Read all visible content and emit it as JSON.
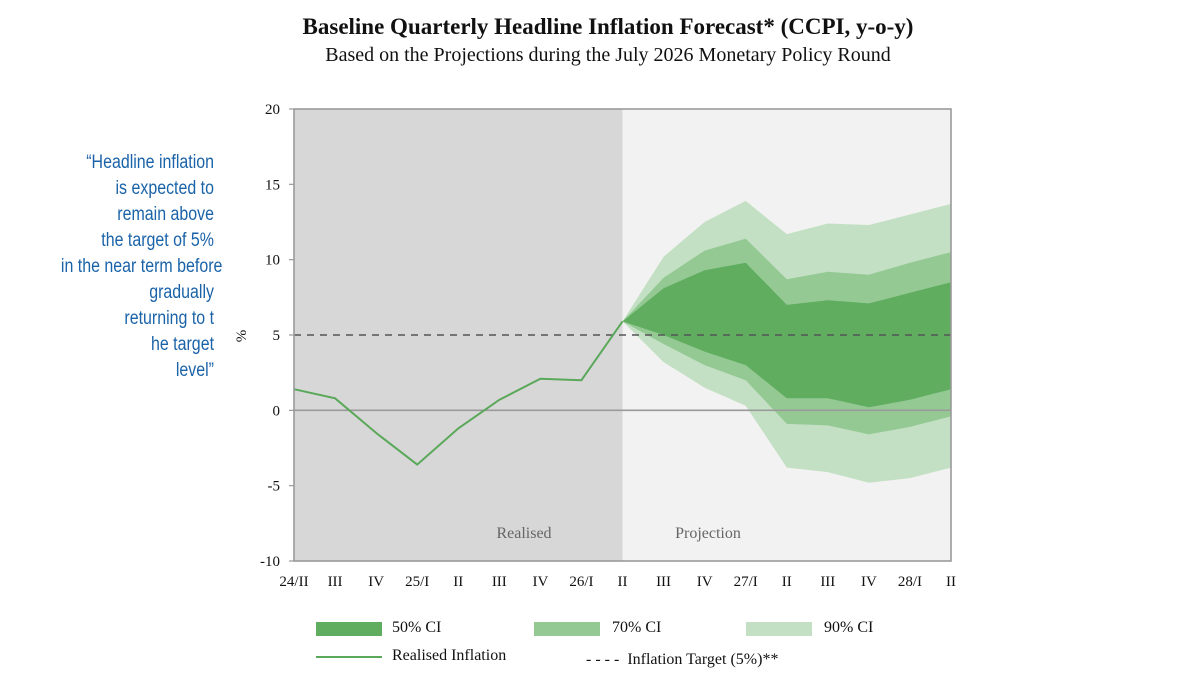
{
  "title": "Baseline Quarterly Headline Inflation Forecast* (CCPI, y-o-y)",
  "subtitle": "Based on the Projections during the July 2026 Monetary Policy Round",
  "quote_lines": [
    "“Headline inflation",
    "is expected to",
    "remain above",
    "the target of 5%",
    "in the near term before",
    "gradually",
    "returning to t",
    "he target",
    "level”"
  ],
  "colors": {
    "ci50": "#60ad60",
    "ci70": "#94c994",
    "ci90": "#c4e0c4",
    "line": "#5aa85a",
    "realised_bg": "#d7d7d7",
    "projection_bg": "#f2f2f2"
  },
  "chart_data": {
    "type": "area",
    "title": "Baseline Quarterly Headline Inflation Forecast* (CCPI, y-o-y)",
    "ylabel": "%",
    "ylim": [
      -10,
      20
    ],
    "yticks": [
      "20",
      "15",
      "10",
      "5",
      "0",
      "-5",
      "-10"
    ],
    "categories": [
      "24/II",
      "III",
      "IV",
      "25/I",
      "II",
      "III",
      "IV",
      "26/I",
      "II",
      "III",
      "IV",
      "27/I",
      "II",
      "III",
      "IV",
      "28/I",
      "II"
    ],
    "regions": [
      {
        "label": "Realised",
        "from": "24/II",
        "to": "26/I→II"
      },
      {
        "label": "Projection",
        "from": "26/II",
        "to": "28/II"
      }
    ],
    "series": [
      {
        "name": "Realised Inflation",
        "values": [
          1.4,
          0.8,
          -1.5,
          -3.6,
          -1.2,
          0.7,
          2.1,
          2.0,
          5.9,
          null,
          null,
          null,
          null,
          null,
          null,
          null,
          null
        ]
      },
      {
        "name": "Inflation Target (5%)**",
        "value": 5
      }
    ],
    "bands": [
      {
        "name": "90% CI",
        "upper": [
          null,
          null,
          null,
          null,
          null,
          null,
          null,
          null,
          5.9,
          10.2,
          12.5,
          13.9,
          11.7,
          12.4,
          12.3,
          13.0,
          13.7
        ],
        "lower": [
          null,
          null,
          null,
          null,
          null,
          null,
          null,
          null,
          5.9,
          3.2,
          1.5,
          0.3,
          -3.8,
          -4.1,
          -4.8,
          -4.5,
          -3.8
        ]
      },
      {
        "name": "70% CI",
        "upper": [
          null,
          null,
          null,
          null,
          null,
          null,
          null,
          null,
          5.9,
          8.8,
          10.6,
          11.4,
          8.7,
          9.2,
          9.0,
          9.8,
          10.5
        ],
        "lower": [
          null,
          null,
          null,
          null,
          null,
          null,
          null,
          null,
          5.9,
          4.4,
          3.0,
          2.0,
          -0.9,
          -1.0,
          -1.6,
          -1.1,
          -0.4
        ]
      },
      {
        "name": "50% CI",
        "upper": [
          null,
          null,
          null,
          null,
          null,
          null,
          null,
          null,
          5.9,
          8.1,
          9.3,
          9.8,
          7.0,
          7.3,
          7.1,
          7.8,
          8.5
        ],
        "lower": [
          null,
          null,
          null,
          null,
          null,
          null,
          null,
          null,
          5.9,
          5.0,
          3.9,
          3.0,
          0.8,
          0.8,
          0.2,
          0.7,
          1.4
        ]
      }
    ],
    "legend": [
      {
        "label": "50% CI"
      },
      {
        "label": "70% CI"
      },
      {
        "label": "90% CI"
      },
      {
        "label": "Realised Inflation"
      },
      {
        "label": "- - - -  Inflation Target (5%)**"
      }
    ]
  }
}
